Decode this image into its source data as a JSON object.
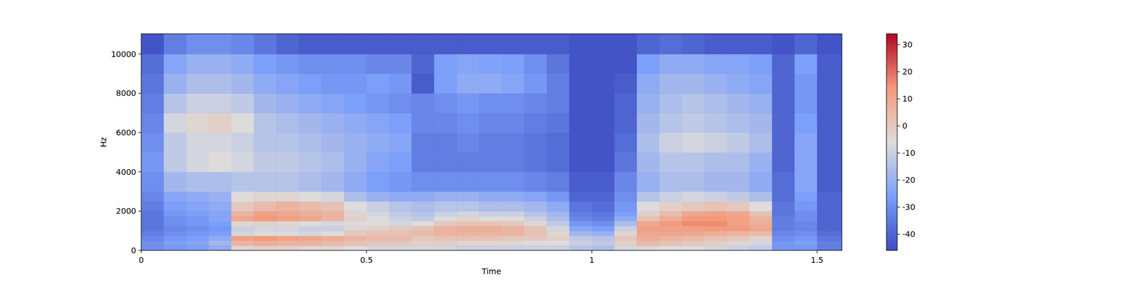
{
  "chart_data": {
    "type": "heatmap",
    "x_label": "Time",
    "y_label": "Hz",
    "xlim": [
      0,
      1.555
    ],
    "ylim": [
      0,
      11025
    ],
    "xticks": [
      0,
      0.5,
      1,
      1.5
    ],
    "yticks": [
      0,
      2000,
      4000,
      6000,
      8000,
      10000
    ],
    "time_edges": [
      0,
      0.05,
      0.1,
      0.15,
      0.2,
      0.25,
      0.3,
      0.35,
      0.4,
      0.45,
      0.5,
      0.55,
      0.6,
      0.65,
      0.7,
      0.75,
      0.8,
      0.85,
      0.9,
      0.95,
      1,
      1.05,
      1.1,
      1.15,
      1.2,
      1.25,
      1.3,
      1.35,
      1.4,
      1.45,
      1.5,
      1.555
    ],
    "freq_edges": [
      0,
      250,
      500,
      750,
      1000,
      1250,
      1500,
      1750,
      2000,
      2500,
      3000,
      4000,
      5000,
      6000,
      7000,
      8000,
      9000,
      10000,
      11025
    ],
    "cells": [
      [
        -30,
        -28,
        -26,
        -22,
        -4,
        -2,
        -2,
        -4,
        -4,
        -6,
        -8,
        -8,
        -8,
        -8,
        -10,
        -10,
        -10,
        -10,
        -10,
        -14,
        -16,
        -8,
        -4,
        -6,
        -6,
        -8,
        -10,
        -12,
        -28,
        -28,
        -34
      ],
      [
        -30,
        -26,
        -24,
        -18,
        6,
        8,
        6,
        6,
        4,
        2,
        0,
        0,
        -2,
        -2,
        -4,
        -4,
        -4,
        -6,
        -6,
        -10,
        -12,
        -2,
        4,
        2,
        0,
        -2,
        -4,
        -8,
        -28,
        -26,
        -34
      ],
      [
        -32,
        -28,
        -26,
        -22,
        12,
        14,
        12,
        10,
        8,
        6,
        4,
        4,
        0,
        2,
        2,
        2,
        0,
        0,
        -2,
        -12,
        -14,
        0,
        8,
        6,
        4,
        2,
        0,
        -4,
        -30,
        -28,
        -36
      ],
      [
        -34,
        -30,
        -28,
        -26,
        -8,
        -6,
        -6,
        -8,
        -6,
        0,
        2,
        2,
        4,
        6,
        6,
        6,
        6,
        2,
        -4,
        -18,
        -20,
        -4,
        10,
        10,
        10,
        8,
        6,
        4,
        -32,
        -30,
        -38
      ],
      [
        -36,
        -32,
        -30,
        -28,
        -10,
        -8,
        -8,
        -10,
        -10,
        -4,
        -2,
        0,
        2,
        6,
        8,
        8,
        6,
        2,
        -8,
        -24,
        -26,
        -10,
        12,
        12,
        12,
        14,
        14,
        10,
        -34,
        -32,
        -40
      ],
      [
        -36,
        -30,
        -28,
        -26,
        -4,
        -2,
        -4,
        -6,
        -8,
        -6,
        -6,
        -8,
        -6,
        0,
        2,
        2,
        0,
        -4,
        -12,
        -28,
        -30,
        -16,
        10,
        14,
        16,
        16,
        12,
        8,
        -34,
        -32,
        -40
      ],
      [
        -36,
        -30,
        -28,
        -24,
        10,
        14,
        12,
        10,
        6,
        -2,
        -6,
        -10,
        -12,
        -6,
        -4,
        -6,
        -6,
        -10,
        -16,
        -32,
        -34,
        -22,
        2,
        8,
        14,
        14,
        12,
        6,
        -34,
        -30,
        -40
      ],
      [
        -36,
        -28,
        -26,
        -24,
        6,
        12,
        10,
        8,
        6,
        -4,
        -8,
        -12,
        -14,
        -10,
        -8,
        -10,
        -10,
        -14,
        -18,
        -34,
        -36,
        -26,
        -2,
        4,
        10,
        12,
        10,
        2,
        -36,
        -30,
        -40
      ],
      [
        -34,
        -26,
        -24,
        -22,
        0,
        4,
        6,
        4,
        2,
        -6,
        -10,
        -14,
        -16,
        -14,
        -14,
        -16,
        -16,
        -18,
        -22,
        -36,
        -38,
        -28,
        -6,
        -2,
        0,
        2,
        0,
        -6,
        -36,
        -28,
        -40
      ],
      [
        -32,
        -24,
        -22,
        -20,
        -6,
        -4,
        -4,
        -6,
        -8,
        -16,
        -20,
        -22,
        -22,
        -20,
        -20,
        -22,
        -22,
        -24,
        -28,
        -40,
        -40,
        -30,
        -14,
        -10,
        -8,
        -10,
        -12,
        -16,
        -38,
        -26,
        -40
      ],
      [
        -30,
        -18,
        -16,
        -16,
        -14,
        -14,
        -14,
        -16,
        -18,
        -22,
        -26,
        -28,
        -30,
        -30,
        -30,
        -30,
        -30,
        -32,
        -34,
        -42,
        -42,
        -32,
        -20,
        -16,
        -16,
        -18,
        -18,
        -22,
        -38,
        -24,
        -42
      ],
      [
        -28,
        -12,
        -8,
        -6,
        -8,
        -12,
        -12,
        -14,
        -16,
        -20,
        -24,
        -26,
        -34,
        -34,
        -34,
        -34,
        -34,
        -36,
        -38,
        -44,
        -44,
        -36,
        -18,
        -14,
        -14,
        -16,
        -16,
        -20,
        -40,
        -24,
        -42
      ],
      [
        -30,
        -12,
        -8,
        -8,
        -10,
        -14,
        -14,
        -16,
        -18,
        -20,
        -22,
        -24,
        -34,
        -34,
        -32,
        -34,
        -34,
        -36,
        -38,
        -44,
        -44,
        -38,
        -16,
        -10,
        -8,
        -10,
        -12,
        -16,
        -40,
        -24,
        -42
      ],
      [
        -32,
        -8,
        -4,
        -2,
        -6,
        -14,
        -16,
        -18,
        -20,
        -22,
        -24,
        -26,
        -32,
        -32,
        -30,
        -32,
        -32,
        -34,
        -36,
        -44,
        -44,
        -40,
        -18,
        -14,
        -12,
        -14,
        -16,
        -18,
        -40,
        -26,
        -42
      ],
      [
        -34,
        -14,
        -10,
        -10,
        -12,
        -18,
        -20,
        -22,
        -24,
        -26,
        -28,
        -30,
        -32,
        -30,
        -28,
        -30,
        -30,
        -32,
        -34,
        -44,
        -44,
        -40,
        -20,
        -16,
        -14,
        -16,
        -18,
        -20,
        -40,
        -28,
        -42
      ],
      [
        -36,
        -20,
        -16,
        -16,
        -18,
        -22,
        -24,
        -26,
        -28,
        -28,
        -26,
        -28,
        -42,
        -26,
        -22,
        -22,
        -24,
        -28,
        -34,
        -44,
        -44,
        -42,
        -22,
        -18,
        -18,
        -20,
        -22,
        -24,
        -40,
        -28,
        -42
      ],
      [
        -38,
        -24,
        -20,
        -20,
        -22,
        -26,
        -28,
        -30,
        -30,
        -30,
        -32,
        -32,
        -40,
        -26,
        -24,
        -25,
        -26,
        -30,
        -36,
        -44,
        -44,
        -44,
        -26,
        -22,
        -22,
        -24,
        -24,
        -26,
        -40,
        -26,
        -42
      ],
      [
        -44,
        -34,
        -30,
        -30,
        -32,
        -36,
        -40,
        -42,
        -42,
        -42,
        -42,
        -42,
        -42,
        -42,
        -42,
        -42,
        -42,
        -42,
        -42,
        -44,
        -44,
        -44,
        -40,
        -38,
        -40,
        -42,
        -42,
        -42,
        -44,
        -40,
        -44
      ]
    ],
    "colorbar": {
      "lim": [
        -46,
        34
      ],
      "ticks": [
        -40,
        -30,
        -20,
        -10,
        0,
        10,
        20,
        30
      ]
    }
  }
}
